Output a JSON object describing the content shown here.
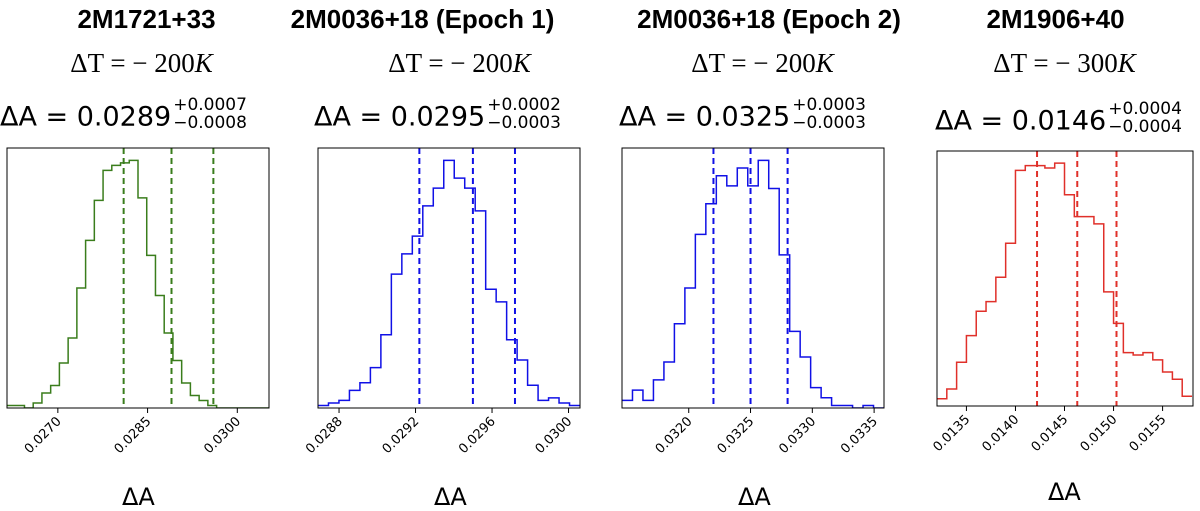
{
  "chart_data": [
    {
      "type": "histogram",
      "title": "2M1721+33",
      "delta_t_prefix": "ΔT = − 200",
      "delta_t_unit": "K",
      "result_label": "ΔA = 0.0289",
      "err_plus": "+0.0007",
      "err_minus": "−0.0008",
      "xlabel": "ΔA",
      "color": "#3a7d1c",
      "xlim": [
        0.02615,
        0.03053
      ],
      "xticks": [
        0.027,
        0.0285,
        0.03
      ],
      "xtick_labels": [
        "0.0270",
        "0.0285",
        "0.0300"
      ],
      "vlines": [
        0.0281,
        0.0289,
        0.0296
      ],
      "bins": {
        "start": 0.02615,
        "width": 0.000146,
        "counts": [
          1,
          1,
          0,
          2,
          6,
          9,
          18,
          28,
          48,
          67,
          83,
          95,
          97,
          98,
          99,
          84,
          61,
          45,
          30,
          19,
          10,
          5,
          3,
          1,
          0,
          0,
          0,
          0,
          0,
          0
        ]
      }
    },
    {
      "type": "histogram",
      "title": "2M0036+18 (Epoch 1)",
      "delta_t_prefix": "ΔT = − 200",
      "delta_t_unit": "K",
      "result_label": "ΔA = 0.0295",
      "err_plus": "+0.0002",
      "err_minus": "−0.0003",
      "xlabel": "ΔA",
      "color": "#1010e6",
      "xlim": [
        0.02869,
        0.03006
      ],
      "xticks": [
        0.0288,
        0.0292,
        0.0296,
        0.03
      ],
      "xtick_labels": [
        "0.0288",
        "0.0292",
        "0.0296",
        "0.0300"
      ],
      "vlines": [
        0.02922,
        0.0295,
        0.02972
      ],
      "bins": {
        "start": 0.02869,
        "width": 5.48e-05,
        "counts": [
          1,
          2,
          3,
          7,
          10,
          16,
          29,
          53,
          61,
          68,
          80,
          87,
          98,
          91,
          87,
          78,
          47,
          42,
          27,
          19,
          9,
          3,
          4,
          2,
          1
        ]
      }
    },
    {
      "type": "histogram",
      "title": "2M0036+18 (Epoch 2)",
      "delta_t_prefix": "ΔT = − 200",
      "delta_t_unit": "K",
      "result_label": "ΔA = 0.0325",
      "err_plus": "+0.0003",
      "err_minus": "−0.0003",
      "xlabel": "ΔA",
      "color": "#1010e6",
      "xlim": [
        0.03146,
        0.03358
      ],
      "xticks": [
        0.032,
        0.0325,
        0.033,
        0.0335
      ],
      "xtick_labels": [
        "0.0320",
        "0.0325",
        "0.0330",
        "0.0335"
      ],
      "vlines": [
        0.0322,
        0.0325,
        0.0328
      ],
      "bins": {
        "start": 0.03146,
        "width": 8.48e-05,
        "counts": [
          3,
          7,
          3,
          11,
          18,
          33,
          47,
          68,
          80,
          91,
          87,
          94,
          87,
          97,
          86,
          60,
          30,
          20,
          8,
          4,
          1,
          1,
          0,
          1,
          0
        ]
      }
    },
    {
      "type": "histogram",
      "title": "2M1906+40",
      "delta_t_prefix": "ΔT = − 300",
      "delta_t_unit": "K",
      "result_label": "ΔA = 0.0146",
      "err_plus": "+0.0004",
      "err_minus": "−0.0004",
      "xlabel": "ΔA",
      "color": "#e0302a",
      "xlim": [
        0.0132,
        0.01581
      ],
      "xticks": [
        0.0135,
        0.014,
        0.0145,
        0.015,
        0.0155
      ],
      "xtick_labels": [
        "0.0135",
        "0.0140",
        "0.0145",
        "0.0150",
        "0.0155"
      ],
      "vlines": [
        0.01422,
        0.01463,
        0.01503
      ],
      "bins": {
        "start": 0.0132,
        "width": 0.0001,
        "counts": [
          3,
          7,
          18,
          29,
          39,
          43,
          53,
          67,
          97,
          99,
          99,
          98,
          100,
          87,
          78,
          78,
          75,
          47,
          34,
          22,
          21,
          22,
          19,
          14,
          11,
          4
        ]
      }
    }
  ]
}
